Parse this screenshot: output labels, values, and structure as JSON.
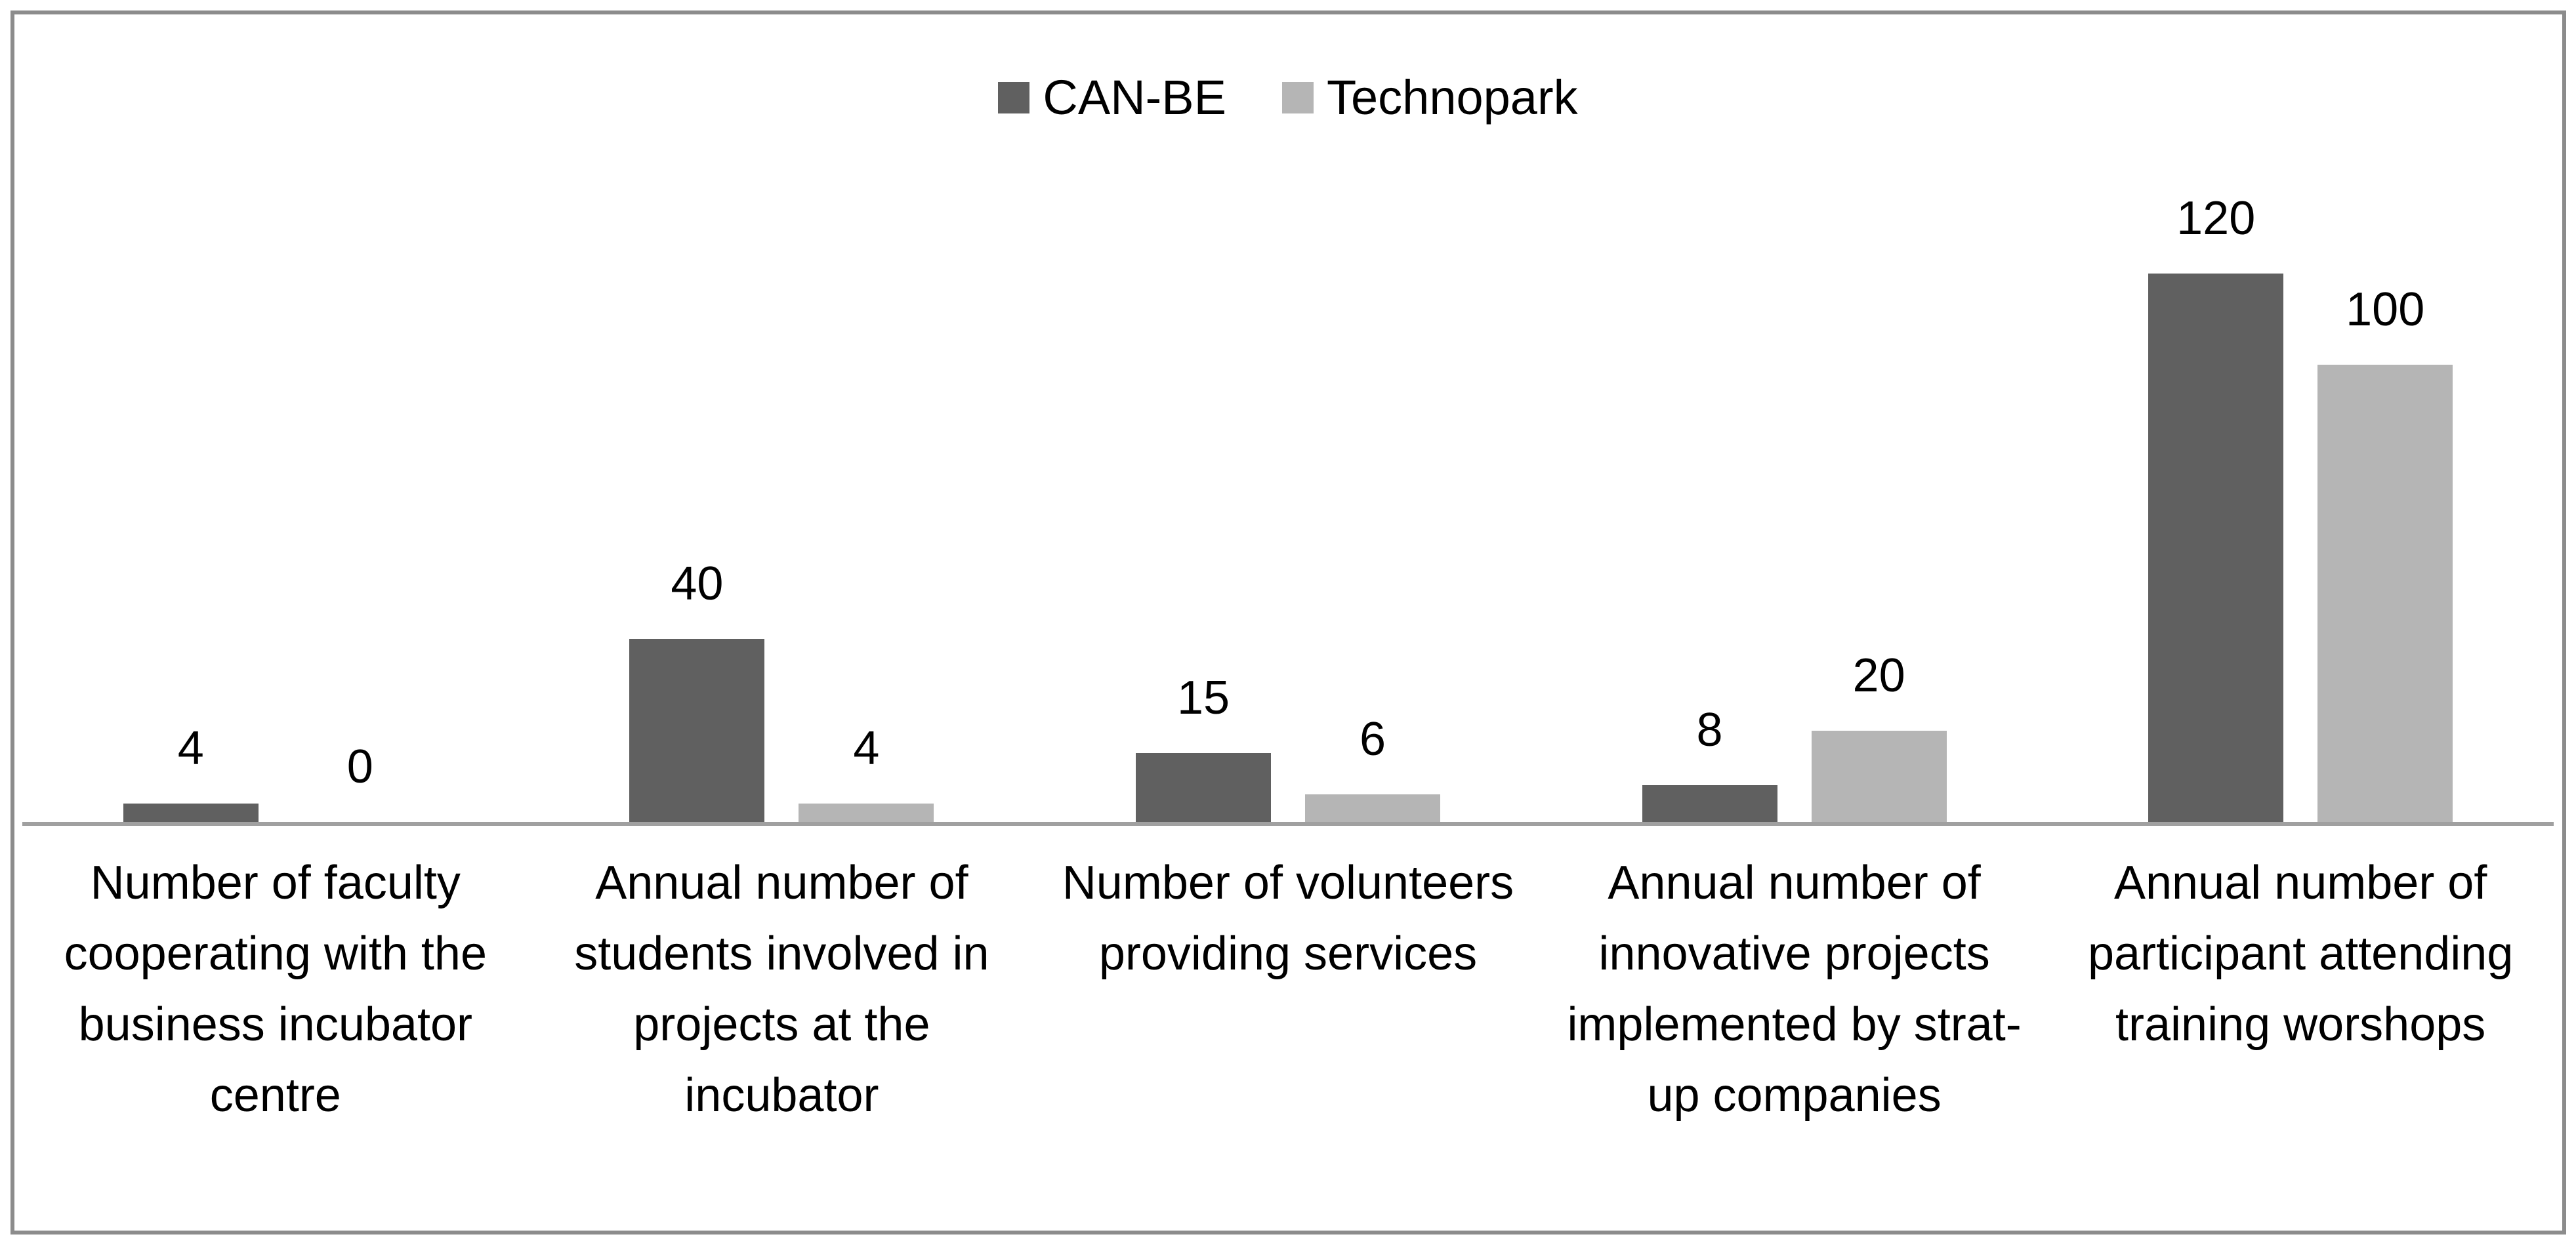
{
  "frame": {
    "border_color": "#8C8C8C",
    "background_color": "#FFFFFF"
  },
  "chart_data": {
    "type": "bar",
    "title": "",
    "categories": [
      "Number of faculty\ncooperating with the\nbusiness incubator\ncentre",
      "Annual number of\nstudents involved in\nprojects at the\nincubator",
      "Number of volunteers\nproviding services",
      "Annual number of\ninnovative projects\nimplemented by strat-\nup companies",
      "Annual number of\nparticipant attending\ntraining worshops"
    ],
    "series": [
      {
        "name": "CAN-BE",
        "color": "#606060",
        "values": [
          4,
          40,
          15,
          8,
          120
        ]
      },
      {
        "name": "Technopark",
        "color": "#B5B5B5",
        "values": [
          0,
          4,
          6,
          20,
          100
        ]
      }
    ],
    "value_labels_shown": true,
    "legend_position": "top-center",
    "gridlines": false,
    "y_axis_visible": false,
    "baseline_color": "#A0A0A0"
  }
}
